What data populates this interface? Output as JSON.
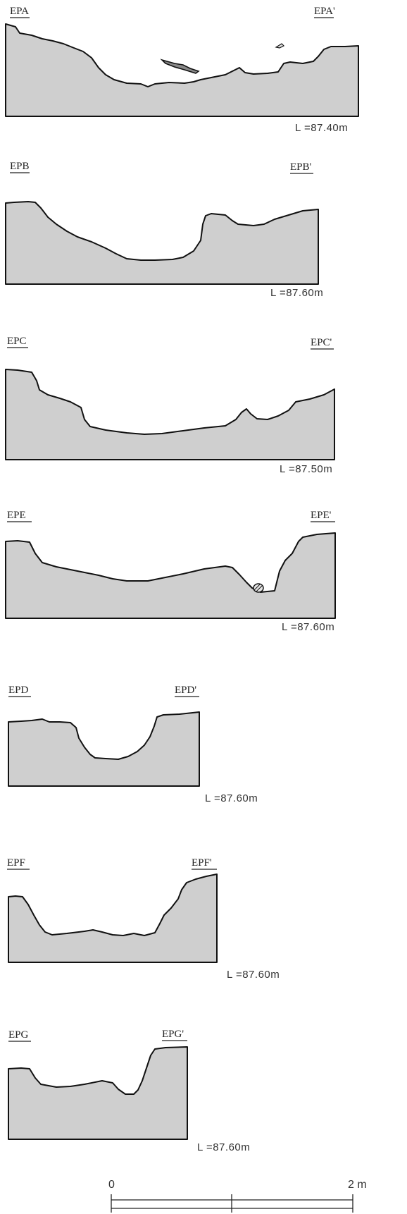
{
  "sections": [
    {
      "start": "EPA",
      "end": "EPA'",
      "level": "L =87.40m"
    },
    {
      "start": "EPB",
      "end": "EPB'",
      "level": "L =87.60m"
    },
    {
      "start": "EPC",
      "end": "EPC'",
      "level": "L =87.50m"
    },
    {
      "start": "EPE",
      "end": "EPE'",
      "level": "L =87.60m"
    },
    {
      "start": "EPD",
      "end": "EPD'",
      "level": "L =87.60m"
    },
    {
      "start": "EPF",
      "end": "EPF'",
      "level": "L =87.60m"
    },
    {
      "start": "EPG",
      "end": "EPG'",
      "level": "L =87.60m"
    }
  ],
  "scale_bar": {
    "start_label": "0",
    "end_label": "2 m"
  },
  "colors": {
    "fill": "#cfcfcf",
    "line": "#111111"
  }
}
